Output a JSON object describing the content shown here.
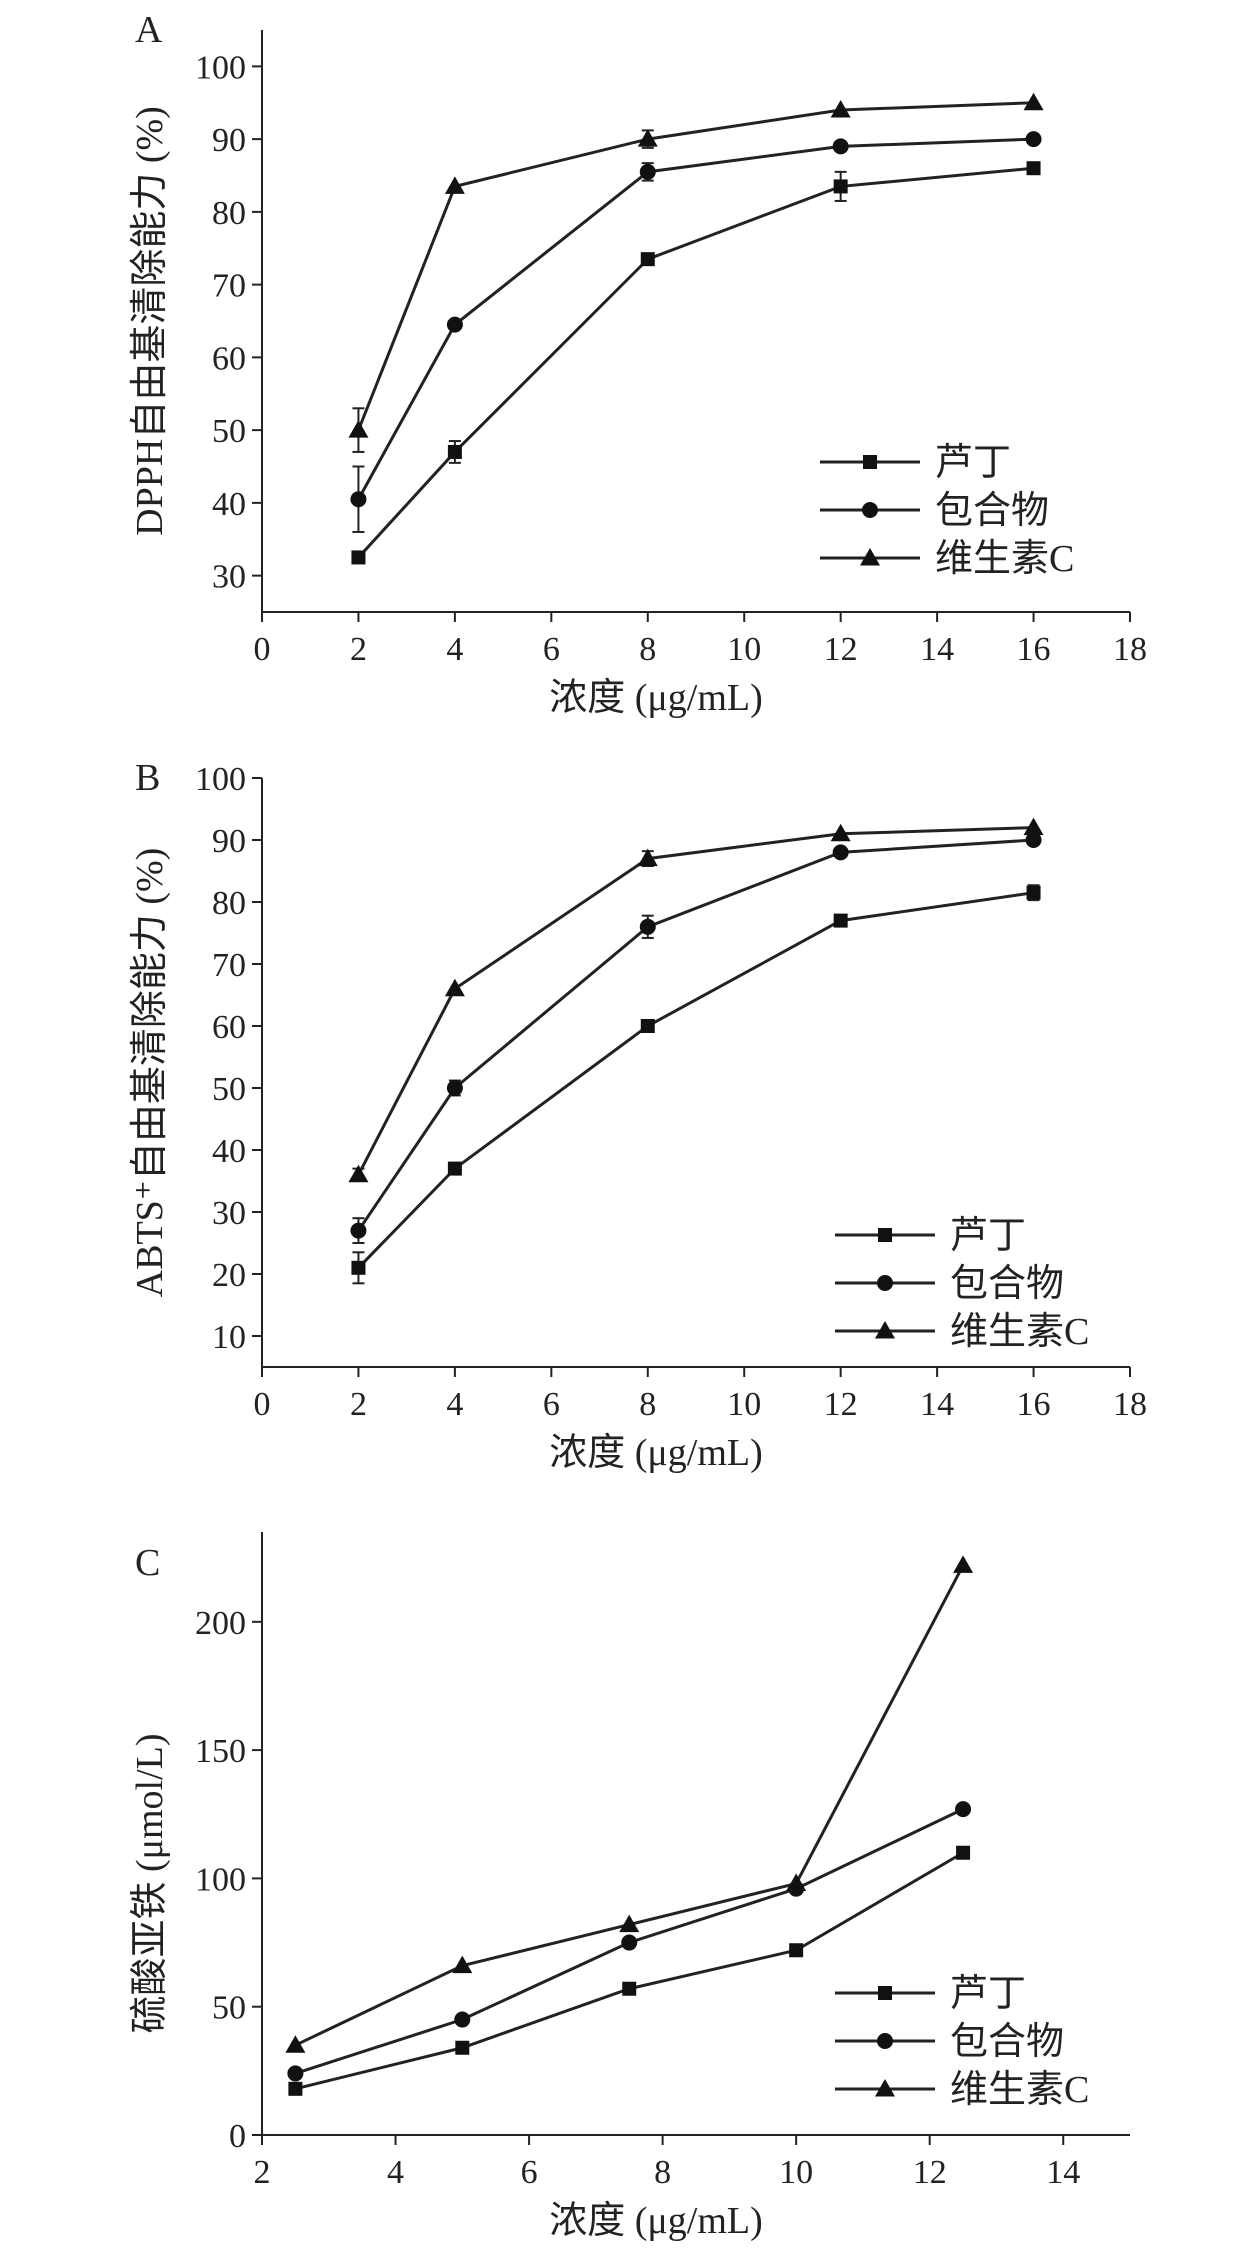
{
  "chart_data": [
    {
      "panel": "A",
      "type": "line",
      "title": "",
      "xlabel": "浓度 (μg/mL)",
      "ylabel": "DPPH自由基清除能力 (%)",
      "xlim": [
        0,
        18
      ],
      "ylim": [
        25,
        105
      ],
      "xticks": [
        0,
        2,
        4,
        6,
        8,
        10,
        12,
        14,
        16,
        18
      ],
      "yticks": [
        30,
        40,
        50,
        60,
        70,
        80,
        90,
        100
      ],
      "legend_position": "bottom-right",
      "series": [
        {
          "name": "芦丁",
          "marker": "square",
          "x": [
            2,
            4,
            8,
            12,
            16
          ],
          "y": [
            32.5,
            47,
            73.5,
            83.5,
            86
          ],
          "err": [
            0.6,
            1.5,
            0.6,
            2.0,
            0.6
          ]
        },
        {
          "name": "包合物",
          "marker": "circle",
          "x": [
            2,
            4,
            8,
            12,
            16
          ],
          "y": [
            40.5,
            64.5,
            85.5,
            89,
            90
          ],
          "err": [
            4.5,
            0.6,
            1.2,
            0.6,
            0.6
          ]
        },
        {
          "name": "维生素C",
          "marker": "triangle",
          "x": [
            2,
            4,
            8,
            12,
            16
          ],
          "y": [
            50,
            83.5,
            90,
            94,
            95
          ],
          "err": [
            3.0,
            0.6,
            1.2,
            0.6,
            0.8
          ]
        }
      ]
    },
    {
      "panel": "B",
      "type": "line",
      "title": "",
      "xlabel": "浓度 (μg/mL)",
      "ylabel": "ABTS⁺自由基清除能力 (%)",
      "xlim": [
        0,
        18
      ],
      "ylim": [
        5,
        100
      ],
      "xticks": [
        0,
        2,
        4,
        6,
        8,
        10,
        12,
        14,
        16,
        18
      ],
      "yticks": [
        10,
        20,
        30,
        40,
        50,
        60,
        70,
        80,
        90,
        100
      ],
      "legend_position": "bottom-right",
      "series": [
        {
          "name": "芦丁",
          "marker": "square",
          "x": [
            2,
            4,
            8,
            12,
            16
          ],
          "y": [
            21,
            37,
            60,
            77,
            81.5
          ],
          "err": [
            2.5,
            0.5,
            0.5,
            0.5,
            1.2
          ]
        },
        {
          "name": "包合物",
          "marker": "circle",
          "x": [
            2,
            4,
            8,
            12,
            16
          ],
          "y": [
            27,
            50,
            76,
            88,
            90
          ],
          "err": [
            2.0,
            1.2,
            1.8,
            0.5,
            0.8
          ]
        },
        {
          "name": "维生素C",
          "marker": "triangle",
          "x": [
            2,
            4,
            8,
            12,
            16
          ],
          "y": [
            36,
            66,
            87,
            91,
            92
          ],
          "err": [
            1.0,
            0.5,
            1.2,
            0.5,
            0.8
          ]
        }
      ]
    },
    {
      "panel": "C",
      "type": "line",
      "title": "",
      "xlabel": "浓度 (μg/mL)",
      "ylabel": "硫酸亚铁 (μmol/L)",
      "xlim": [
        2,
        15
      ],
      "ylim": [
        0,
        235
      ],
      "xticks": [
        2,
        4,
        6,
        8,
        10,
        12,
        14
      ],
      "yticks": [
        0,
        50,
        100,
        150,
        200
      ],
      "legend_position": "bottom-right",
      "series": [
        {
          "name": "芦丁",
          "marker": "square",
          "x": [
            2.5,
            5,
            7.5,
            10,
            12.5
          ],
          "y": [
            18,
            34,
            57,
            72,
            110
          ]
        },
        {
          "name": "包合物",
          "marker": "circle",
          "x": [
            2.5,
            5,
            7.5,
            10,
            12.5
          ],
          "y": [
            24,
            45,
            75,
            96,
            127
          ]
        },
        {
          "name": "维生素C",
          "marker": "triangle",
          "x": [
            2.5,
            5,
            7.5,
            10,
            12.5
          ],
          "y": [
            35,
            66,
            82,
            98,
            222
          ]
        }
      ]
    }
  ]
}
